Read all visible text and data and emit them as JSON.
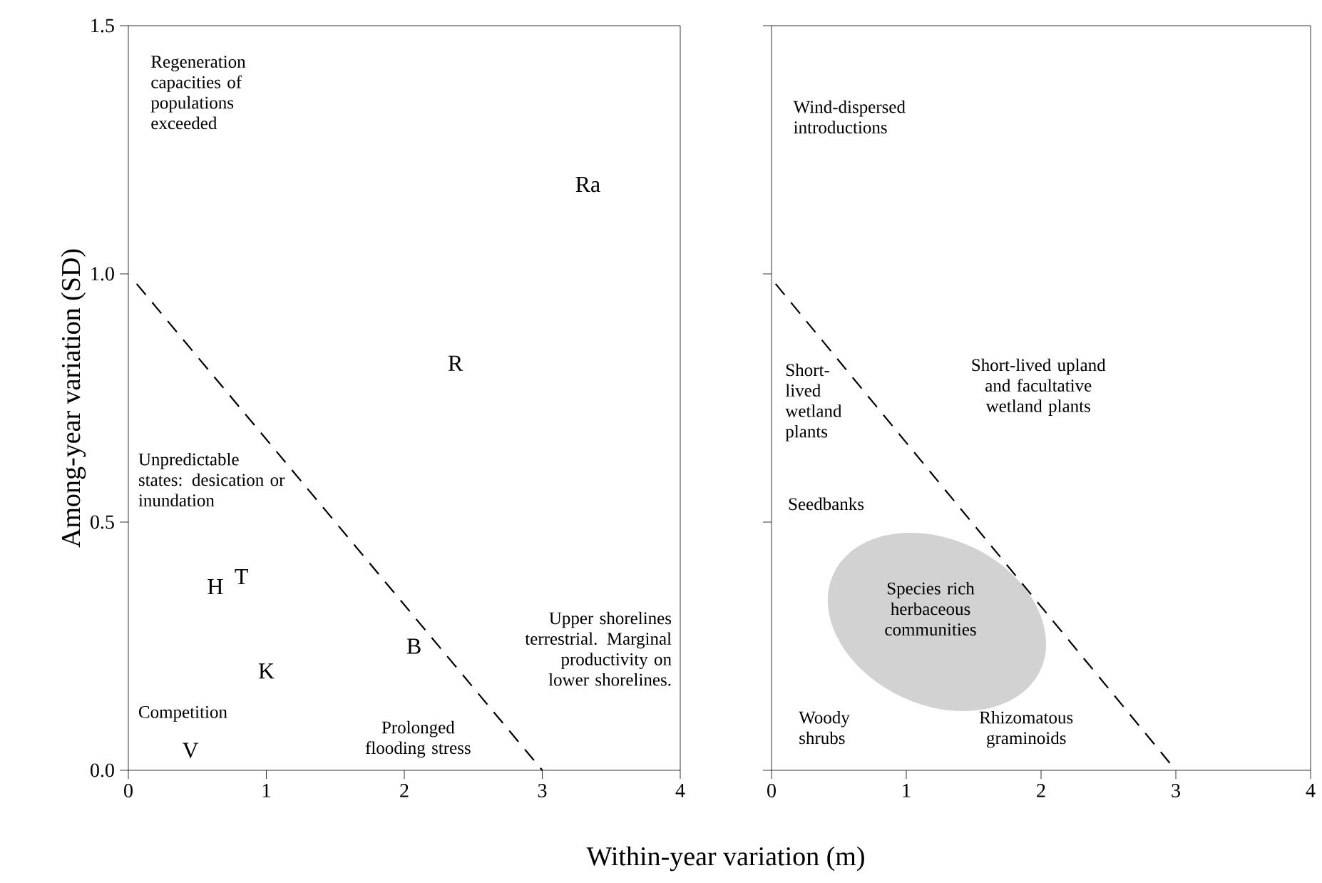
{
  "chart_data": [
    {
      "type": "line",
      "ylabel": "Among-year variation (SD)",
      "xlabel": "Within-year variation (m)",
      "xlim": [
        0,
        4
      ],
      "ylim": [
        0,
        1.5
      ],
      "xticks": [
        0,
        1,
        2,
        3,
        4
      ],
      "yticks": [
        {
          "value": 0,
          "label": "0.0"
        },
        {
          "value": 0.5,
          "label": "0.5"
        },
        {
          "value": 1,
          "label": "1.0"
        },
        {
          "value": 1.5,
          "label": "1.5"
        }
      ],
      "line_style": "dashed",
      "series": [
        {
          "color": "#000000",
          "x": [
            0.06,
            3
          ],
          "values": [
            0.98,
            0
          ]
        }
      ],
      "annotations": [
        "Ra",
        "R",
        "H",
        "T",
        "K",
        "B",
        "V",
        "Regeneration capacities of populations exceeded",
        "Unpredictable states: desication or inundation",
        "Competition",
        "Prolonged flooding stress",
        "Upper shorelines terrestrial. Marginal productivity on lower shorelines."
      ]
    },
    {
      "type": "line",
      "xlim": [
        0,
        4
      ],
      "ylim": [
        0,
        1.5
      ],
      "xticks": [
        0,
        1,
        2,
        3,
        4
      ],
      "yticks": [
        {
          "value": 0,
          "label": null
        },
        {
          "value": 0.5,
          "label": null
        },
        {
          "value": 1,
          "label": null
        },
        {
          "value": 1.5,
          "label": null
        }
      ],
      "tick_labels": "x",
      "line_style": "dashed",
      "series": [
        {
          "color": "#000000",
          "x": [
            0.03,
            3
          ],
          "values": [
            0.98,
            0
          ]
        }
      ],
      "annotations": [
        "Wind-dispersed introductions",
        "Short-lived wetland plants",
        "Short-lived upland and facultative wetland plants",
        "Seedbanks",
        "Species rich herbaceous communities",
        "Woody shrubs",
        "Rhizomatous graminoids"
      ]
    }
  ]
}
